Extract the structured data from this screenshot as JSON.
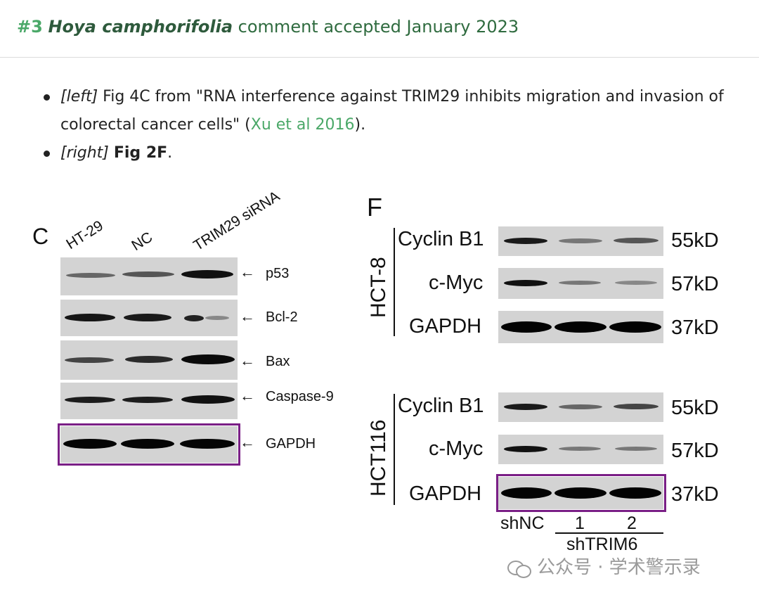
{
  "header": {
    "num": "#3",
    "species": "Hoya camphorifolia",
    "rest": " comment accepted January 2023"
  },
  "bullets": {
    "b1_tag": "[left]",
    "b1_text": " Fig 4C from \"RNA interference against TRIM29 inhibits migration and invasion of colorectal cancer cells\" (",
    "b1_link": "Xu et al 2016",
    "b1_end": ").",
    "b2_tag": "[right]",
    "b2_bold": "Fig 2F",
    "b2_end": "."
  },
  "figC": {
    "panel": "C",
    "lanes": [
      "HT-29",
      "NC",
      "TRIM29 siRNA"
    ],
    "rows": [
      "p53",
      "Bcl-2",
      "Bax",
      "Caspase-9",
      "GAPDH"
    ],
    "arrow": "←"
  },
  "figF": {
    "panel": "F",
    "group1": "HCT-8",
    "group2": "HCT116",
    "proteins": [
      "Cyclin B1",
      "c-Myc",
      "GAPDH"
    ],
    "sizes": [
      "55kD",
      "57kD",
      "37kD"
    ],
    "lane_labels": [
      "shNC",
      "1",
      "2"
    ],
    "sh_label": "shTRIM6"
  },
  "watermark": "公众号 · 学术警示录",
  "colors": {
    "accent_green": "#4aa868",
    "box_purple": "#7a1f86"
  }
}
